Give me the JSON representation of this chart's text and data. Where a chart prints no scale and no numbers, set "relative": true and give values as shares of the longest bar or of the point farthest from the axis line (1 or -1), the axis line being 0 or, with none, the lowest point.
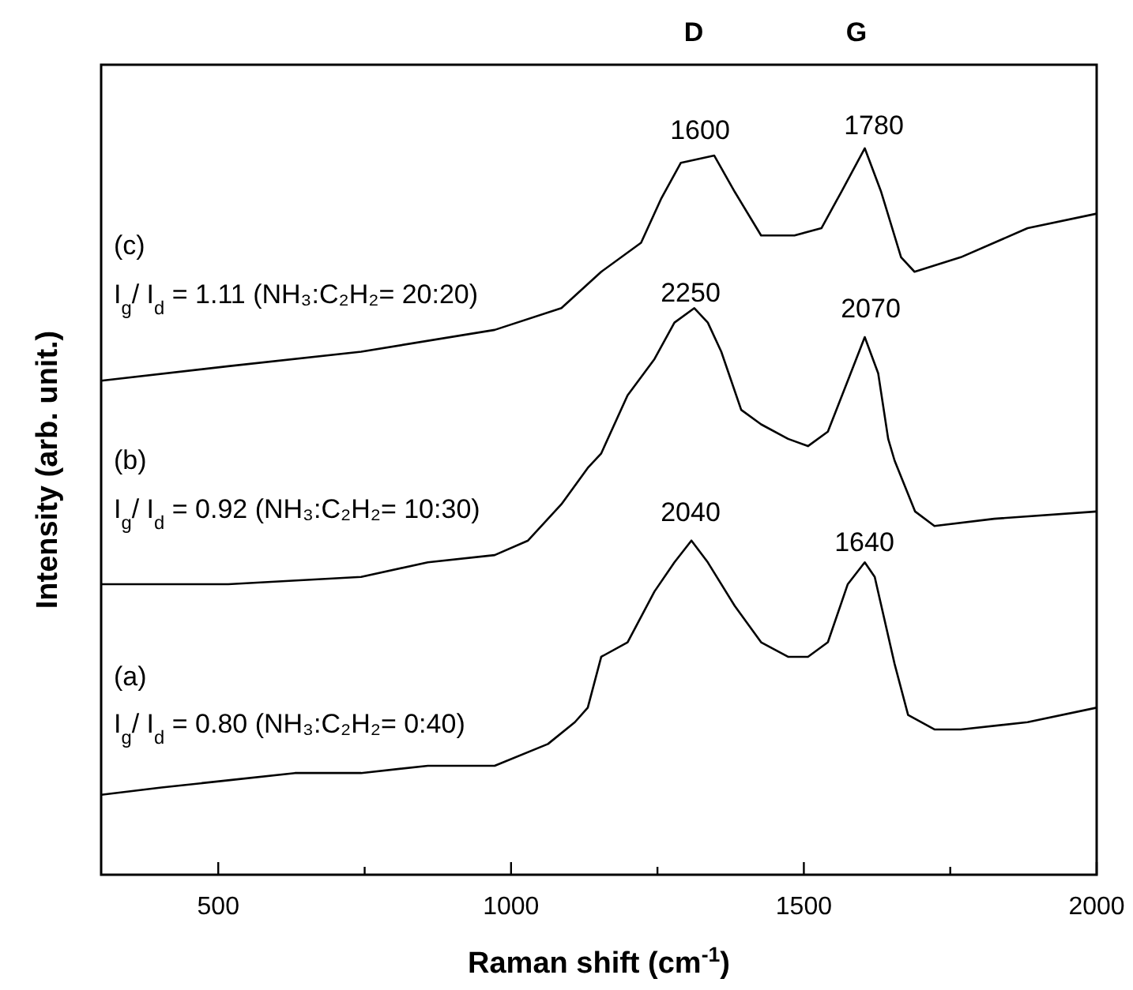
{
  "chart_data": {
    "type": "line",
    "relative": true,
    "xlabel": "Raman shift (cm$^{-1}$)",
    "ylabel": "Intensity (arb. unit.)",
    "xlim": [
      300,
      2000
    ],
    "xticks": [
      500,
      1000,
      1500,
      2000,
      {
        "value": 750,
        "label": null
      },
      {
        "value": 1250,
        "label": null
      },
      {
        "value": 1750,
        "label": null
      }
    ],
    "tick_labels": "x",
    "grid": false,
    "legend": false,
    "marker": "none",
    "line_style": "solid",
    "series": [
      {
        "color": "#000000",
        "x": [
          300,
          403,
          517,
          631,
          744,
          858,
          972,
          1063,
          1109,
          1131,
          1154,
          1199,
          1245,
          1279,
          1308,
          1336,
          1382,
          1427,
          1473,
          1507,
          1541,
          1575,
          1604,
          1621,
          1655,
          1678,
          1723,
          1768,
          1882,
          2000
        ],
        "values": [
          0.11,
          0.12,
          0.13,
          0.14,
          0.14,
          0.15,
          0.15,
          0.18,
          0.21,
          0.23,
          0.3,
          0.32,
          0.39,
          0.43,
          0.46,
          0.43,
          0.37,
          0.32,
          0.3,
          0.3,
          0.32,
          0.4,
          0.43,
          0.41,
          0.29,
          0.22,
          0.2,
          0.2,
          0.21,
          0.23
        ]
      },
      {
        "color": "#000000",
        "x": [
          300,
          517,
          744,
          858,
          972,
          1029,
          1086,
          1131,
          1154,
          1199,
          1245,
          1279,
          1313,
          1336,
          1359,
          1393,
          1427,
          1473,
          1507,
          1541,
          1575,
          1604,
          1627,
          1644,
          1655,
          1690,
          1723,
          1825,
          2000
        ],
        "values": [
          0.4,
          0.4,
          0.41,
          0.43,
          0.44,
          0.46,
          0.51,
          0.56,
          0.58,
          0.66,
          0.71,
          0.76,
          0.78,
          0.76,
          0.72,
          0.64,
          0.62,
          0.6,
          0.59,
          0.61,
          0.68,
          0.74,
          0.69,
          0.6,
          0.57,
          0.5,
          0.48,
          0.49,
          0.5
        ]
      },
      {
        "color": "#000000",
        "x": [
          300,
          517,
          744,
          972,
          1086,
          1154,
          1222,
          1256,
          1290,
          1347,
          1382,
          1427,
          1484,
          1530,
          1564,
          1604,
          1632,
          1666,
          1689,
          1768,
          1882,
          2000
        ],
        "values": [
          0.68,
          0.7,
          0.72,
          0.75,
          0.78,
          0.83,
          0.87,
          0.93,
          0.98,
          0.99,
          0.94,
          0.88,
          0.88,
          0.89,
          0.94,
          1.0,
          0.94,
          0.85,
          0.83,
          0.85,
          0.89,
          0.91
        ]
      }
    ],
    "annotations": [
      "D",
      "G",
      "1600",
      "1780",
      "2250",
      "2070",
      "2040",
      "1640",
      "(c)",
      "I$_{g}$/ I$_{d}$ = 1.11 (NH₃:C₂H₂= 20:20)",
      "(b)",
      "I$_{g}$/ I$_{d}$ = 0.92 (NH₃:C₂H₂= 10:30)",
      "(a)",
      "I$_{g}$/ I$_{d}$ = 0.80 (NH₃:C₂H₂= 0:40)"
    ]
  }
}
